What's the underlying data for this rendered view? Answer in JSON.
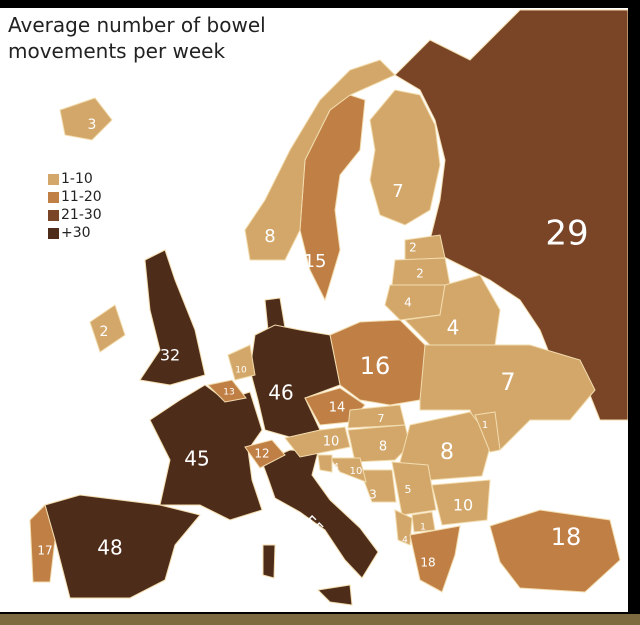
{
  "title_line1": "Average number of bowel",
  "title_line2": "movements per week",
  "legend": [
    {
      "label": "1-10",
      "color": "#d3a76a"
    },
    {
      "label": "11-20",
      "color": "#c07f45"
    },
    {
      "label": "21-30",
      "color": "#7a4526"
    },
    {
      "label": "+30",
      "color": "#4e2c1a"
    }
  ],
  "countries": {
    "russia": "29",
    "finland": "7",
    "sweden": "15",
    "norway": "8",
    "estonia": "2",
    "latvia": "2",
    "lithuania": "4",
    "belarus": "4",
    "ukraine": "7",
    "poland": "16",
    "germany": "46",
    "czechia": "14",
    "france": "45",
    "spain": "48",
    "portugal": "17",
    "italy": "55",
    "uk": "32",
    "ireland": "2",
    "iceland": "3",
    "switzerland": "12",
    "austria": "10",
    "belgium": "13",
    "netherlands": "10",
    "hungary": "8",
    "slovakia": "7",
    "romania": "8",
    "bulgaria": "10",
    "serbia": "5",
    "bosnia": "3",
    "croatia": "10",
    "slovenia": "4",
    "greece": "18",
    "turkey": "18",
    "moldova": "1",
    "macedonia": "1",
    "albania": "4",
    "montenegro": "4"
  }
}
